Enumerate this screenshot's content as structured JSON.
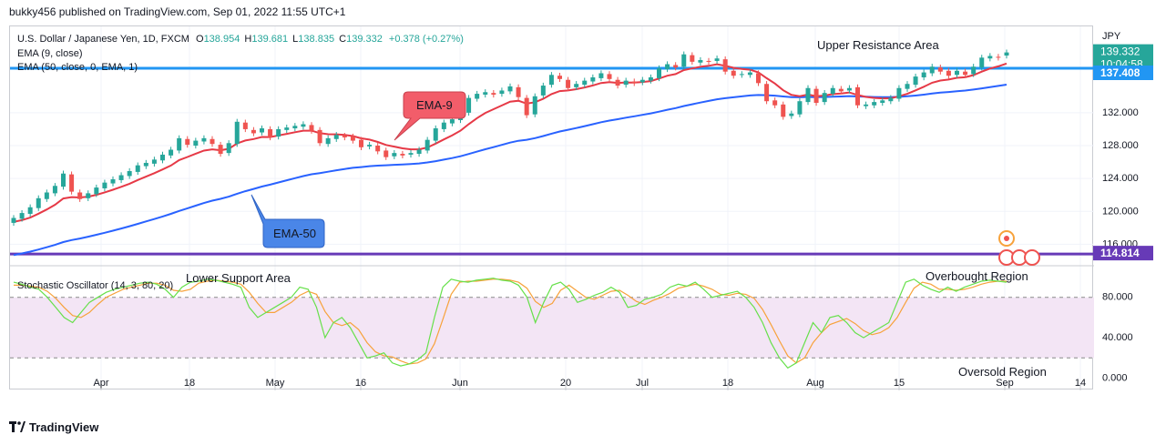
{
  "header": {
    "publisher_line": "bukky456 published on TradingView.com, Sep 01, 2022 11:55 UTC+1"
  },
  "legend": {
    "symbol_line": "U.S. Dollar / Japanese Yen, 1D, FXCM",
    "ohlc": {
      "o_label": "O",
      "o": "138.954",
      "h_label": "H",
      "h": "139.681",
      "l_label": "L",
      "l": "138.835",
      "c_label": "C",
      "c": "139.332",
      "change": "+0.378 (+0.27%)"
    },
    "ema9": "EMA (9, close)",
    "ema50": "EMA (50, close, 0, EMA, 1)",
    "stoch": "Stochastic Oscillator (14, 3, 80, 20)"
  },
  "annotations": {
    "upper_resistance": "Upper Resistance Area",
    "lower_support": "Lower Support Area",
    "ema9_callout": "EMA-9",
    "ema50_callout": "EMA-50",
    "overbought": "Overbought Region",
    "oversold": "Oversold Region"
  },
  "footer": {
    "brand": "TradingView"
  },
  "colors": {
    "up": "#26a69a",
    "down": "#ef5350",
    "ema9": "#e63946",
    "ema50": "#2962ff",
    "resistance": "#2196f3",
    "support": "#673ab7",
    "stoch_k": "#66e04a",
    "stoch_d": "#f7a23b",
    "stoch_band": "#f3e5f5",
    "callout_red": "#f25d6a",
    "callout_blue": "#4a86e8"
  },
  "chart_data": {
    "type": "candlestick",
    "symbol": "U.S. Dollar / Japanese Yen",
    "timeframe": "1D",
    "currency": "JPY",
    "y_axis": {
      "ticks": [
        116,
        120,
        124,
        128,
        132
      ],
      "range": [
        113.5,
        142.5
      ]
    },
    "x_axis": {
      "labels": [
        "Apr",
        "18",
        "May",
        "16",
        "Jun",
        "20",
        "Jul",
        "18",
        "Aug",
        "15",
        "Sep",
        "14"
      ]
    },
    "price_labels": {
      "current": "139.332",
      "countdown": "10:04:58",
      "resistance": "137.408",
      "support": "114.814"
    },
    "resistance_level": 137.408,
    "support_level": 114.814,
    "candles": [
      {
        "o": 118.6,
        "c": 119.2
      },
      {
        "o": 119.1,
        "c": 119.8
      },
      {
        "o": 119.7,
        "c": 120.5
      },
      {
        "o": 120.4,
        "c": 121.6
      },
      {
        "o": 121.5,
        "c": 122.3
      },
      {
        "o": 122.2,
        "c": 123.1
      },
      {
        "o": 123.0,
        "c": 124.6
      },
      {
        "o": 124.5,
        "c": 122.4
      },
      {
        "o": 122.3,
        "c": 121.5
      },
      {
        "o": 121.6,
        "c": 122.2
      },
      {
        "o": 122.1,
        "c": 122.9
      },
      {
        "o": 122.8,
        "c": 123.5
      },
      {
        "o": 123.4,
        "c": 123.9
      },
      {
        "o": 123.8,
        "c": 124.4
      },
      {
        "o": 124.3,
        "c": 124.9
      },
      {
        "o": 124.8,
        "c": 125.6
      },
      {
        "o": 125.5,
        "c": 125.9
      },
      {
        "o": 125.8,
        "c": 126.3
      },
      {
        "o": 126.2,
        "c": 126.9
      },
      {
        "o": 126.8,
        "c": 127.5
      },
      {
        "o": 127.4,
        "c": 128.9
      },
      {
        "o": 128.8,
        "c": 128.1
      },
      {
        "o": 128.0,
        "c": 128.6
      },
      {
        "o": 128.5,
        "c": 128.9
      },
      {
        "o": 128.8,
        "c": 128.2
      },
      {
        "o": 128.1,
        "c": 127.0
      },
      {
        "o": 127.1,
        "c": 128.3
      },
      {
        "o": 128.2,
        "c": 130.9
      },
      {
        "o": 130.8,
        "c": 130.0
      },
      {
        "o": 129.9,
        "c": 129.5
      },
      {
        "o": 129.6,
        "c": 130.1
      },
      {
        "o": 130.0,
        "c": 129.0
      },
      {
        "o": 129.1,
        "c": 130.0
      },
      {
        "o": 129.9,
        "c": 130.2
      },
      {
        "o": 130.1,
        "c": 130.4
      },
      {
        "o": 130.3,
        "c": 130.6
      },
      {
        "o": 130.5,
        "c": 129.8
      },
      {
        "o": 129.9,
        "c": 128.3
      },
      {
        "o": 128.2,
        "c": 128.9
      },
      {
        "o": 128.8,
        "c": 129.3
      },
      {
        "o": 129.2,
        "c": 129.0
      },
      {
        "o": 129.1,
        "c": 128.6
      },
      {
        "o": 128.7,
        "c": 127.8
      },
      {
        "o": 127.9,
        "c": 128.1
      },
      {
        "o": 128.0,
        "c": 127.3
      },
      {
        "o": 127.4,
        "c": 126.6
      },
      {
        "o": 126.7,
        "c": 127.1
      },
      {
        "o": 127.0,
        "c": 126.8
      },
      {
        "o": 126.9,
        "c": 127.1
      },
      {
        "o": 127.0,
        "c": 127.5
      },
      {
        "o": 127.4,
        "c": 128.7
      },
      {
        "o": 128.6,
        "c": 130.1
      },
      {
        "o": 130.0,
        "c": 130.8
      },
      {
        "o": 130.7,
        "c": 131.2
      },
      {
        "o": 131.1,
        "c": 132.1
      },
      {
        "o": 132.0,
        "c": 133.8
      },
      {
        "o": 133.7,
        "c": 134.3
      },
      {
        "o": 134.2,
        "c": 134.5
      },
      {
        "o": 134.4,
        "c": 134.2
      },
      {
        "o": 134.3,
        "c": 134.7
      },
      {
        "o": 134.6,
        "c": 135.2
      },
      {
        "o": 135.1,
        "c": 133.9
      },
      {
        "o": 133.8,
        "c": 131.7
      },
      {
        "o": 131.8,
        "c": 134.0
      },
      {
        "o": 134.1,
        "c": 135.3
      },
      {
        "o": 135.4,
        "c": 136.6
      },
      {
        "o": 136.5,
        "c": 136.1
      },
      {
        "o": 136.0,
        "c": 135.0
      },
      {
        "o": 135.1,
        "c": 135.5
      },
      {
        "o": 135.4,
        "c": 135.9
      },
      {
        "o": 135.8,
        "c": 136.3
      },
      {
        "o": 136.2,
        "c": 136.8
      },
      {
        "o": 136.7,
        "c": 136.1
      },
      {
        "o": 136.0,
        "c": 135.3
      },
      {
        "o": 135.4,
        "c": 135.9
      },
      {
        "o": 135.8,
        "c": 135.6
      },
      {
        "o": 135.7,
        "c": 136.0
      },
      {
        "o": 135.9,
        "c": 136.3
      },
      {
        "o": 136.2,
        "c": 137.4
      },
      {
        "o": 137.3,
        "c": 137.9
      },
      {
        "o": 137.8,
        "c": 137.5
      },
      {
        "o": 137.6,
        "c": 139.1
      },
      {
        "o": 139.0,
        "c": 138.2
      },
      {
        "o": 138.1,
        "c": 138.4
      },
      {
        "o": 138.3,
        "c": 138.2
      },
      {
        "o": 138.3,
        "c": 138.6
      },
      {
        "o": 138.5,
        "c": 137.0
      },
      {
        "o": 137.1,
        "c": 136.5
      },
      {
        "o": 136.6,
        "c": 136.7
      },
      {
        "o": 136.6,
        "c": 136.9
      },
      {
        "o": 136.8,
        "c": 135.6
      },
      {
        "o": 135.5,
        "c": 133.4
      },
      {
        "o": 133.5,
        "c": 132.9
      },
      {
        "o": 133.0,
        "c": 131.5
      },
      {
        "o": 131.6,
        "c": 131.9
      },
      {
        "o": 131.8,
        "c": 133.4
      },
      {
        "o": 133.3,
        "c": 135.0
      },
      {
        "o": 134.9,
        "c": 133.2
      },
      {
        "o": 133.3,
        "c": 134.4
      },
      {
        "o": 134.3,
        "c": 135.0
      },
      {
        "o": 134.9,
        "c": 134.6
      },
      {
        "o": 134.7,
        "c": 135.0
      },
      {
        "o": 135.1,
        "c": 132.9
      },
      {
        "o": 132.8,
        "c": 133.0
      },
      {
        "o": 132.9,
        "c": 133.3
      },
      {
        "o": 133.2,
        "c": 133.5
      },
      {
        "o": 133.4,
        "c": 133.8
      },
      {
        "o": 133.7,
        "c": 135.0
      },
      {
        "o": 134.9,
        "c": 135.5
      },
      {
        "o": 135.4,
        "c": 136.4
      },
      {
        "o": 136.3,
        "c": 136.9
      },
      {
        "o": 136.8,
        "c": 137.6
      },
      {
        "o": 137.5,
        "c": 137.0
      },
      {
        "o": 137.1,
        "c": 136.5
      },
      {
        "o": 136.6,
        "c": 137.1
      },
      {
        "o": 137.0,
        "c": 136.6
      },
      {
        "o": 136.7,
        "c": 137.6
      },
      {
        "o": 137.5,
        "c": 138.7
      },
      {
        "o": 138.6,
        "c": 138.9
      },
      {
        "o": 138.8,
        "c": 138.7
      },
      {
        "o": 138.954,
        "c": 139.332
      }
    ],
    "stochastic": {
      "levels": {
        "upper": 80,
        "lower": 20
      },
      "y_ticks": [
        0,
        40,
        80
      ],
      "k": [
        95,
        93,
        90,
        88,
        80,
        70,
        60,
        55,
        65,
        75,
        80,
        85,
        88,
        90,
        92,
        94,
        95,
        93,
        88,
        80,
        90,
        95,
        96,
        98,
        97,
        95,
        93,
        90,
        70,
        60,
        65,
        70,
        75,
        80,
        90,
        88,
        70,
        40,
        55,
        60,
        50,
        35,
        20,
        22,
        25,
        15,
        12,
        14,
        18,
        25,
        60,
        90,
        98,
        96,
        95,
        97,
        98,
        99,
        97,
        96,
        92,
        80,
        55,
        75,
        92,
        95,
        88,
        75,
        78,
        82,
        85,
        90,
        85,
        70,
        72,
        78,
        80,
        83,
        90,
        93,
        91,
        95,
        88,
        80,
        82,
        84,
        86,
        80,
        70,
        55,
        35,
        20,
        10,
        15,
        35,
        55,
        45,
        60,
        62,
        55,
        45,
        40,
        45,
        50,
        55,
        75,
        95,
        98,
        92,
        88,
        85,
        90,
        86,
        90,
        93,
        96,
        97,
        96,
        95
      ],
      "d": [
        92,
        92,
        91,
        90,
        86,
        79,
        70,
        62,
        60,
        65,
        73,
        80,
        84,
        88,
        90,
        92,
        94,
        94,
        92,
        87,
        86,
        88,
        94,
        96,
        97,
        96,
        95,
        93,
        85,
        74,
        65,
        65,
        70,
        75,
        82,
        86,
        83,
        66,
        55,
        52,
        55,
        48,
        35,
        26,
        22,
        21,
        17,
        14,
        15,
        19,
        34,
        58,
        83,
        95,
        96,
        96,
        97,
        98,
        98,
        97,
        95,
        89,
        76,
        70,
        74,
        87,
        92,
        86,
        80,
        78,
        82,
        86,
        87,
        82,
        76,
        73,
        77,
        80,
        84,
        89,
        91,
        93,
        91,
        88,
        83,
        82,
        84,
        83,
        79,
        68,
        53,
        37,
        22,
        15,
        20,
        35,
        45,
        53,
        56,
        59,
        54,
        47,
        43,
        45,
        50,
        60,
        75,
        89,
        95,
        93,
        88,
        88,
        87,
        88,
        90,
        93,
        95,
        96,
        96
      ]
    }
  }
}
